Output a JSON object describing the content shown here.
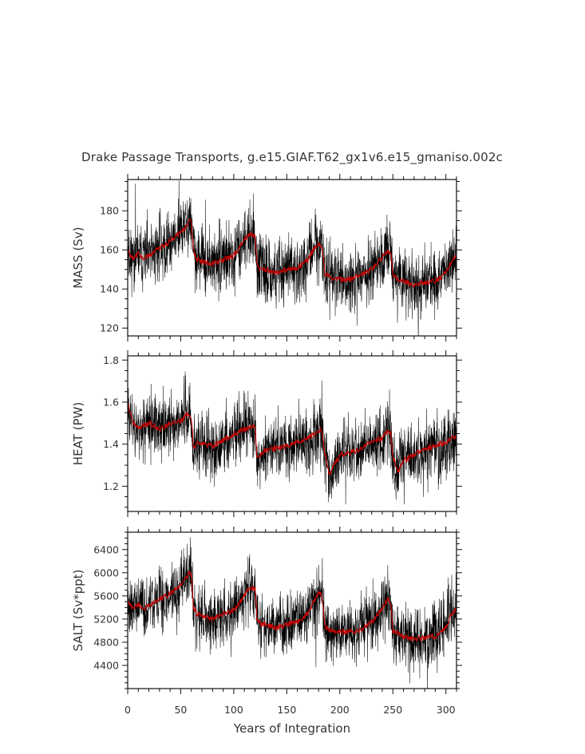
{
  "title": "Drake Passage Transports, g.e15.GIAF.T62_gx1v6.e15_gmaniso.002c",
  "chart_data": [
    {
      "type": "line",
      "ylabel": "MASS (Sv)",
      "xlabel": "",
      "xlim": [
        0,
        310
      ],
      "ylim": [
        116,
        196
      ],
      "xticks": [
        0,
        50,
        100,
        150,
        200,
        250,
        300
      ],
      "yticks": [
        120,
        140,
        160,
        180
      ],
      "ytick_labels": [
        "120",
        "140",
        "160",
        "180"
      ],
      "noise": 8,
      "seed": 11,
      "series": [
        {
          "color": "#cc0000",
          "x": [
            0,
            3,
            6,
            10,
            15,
            20,
            25,
            30,
            35,
            40,
            45,
            50,
            55,
            58,
            60,
            62,
            65,
            70,
            80,
            90,
            100,
            105,
            110,
            115,
            120,
            122,
            125,
            130,
            140,
            150,
            160,
            170,
            175,
            180,
            183,
            186,
            190,
            200,
            210,
            220,
            230,
            240,
            245,
            248,
            250,
            255,
            260,
            270,
            280,
            290,
            300,
            305,
            310
          ],
          "y": [
            160,
            157,
            156,
            158,
            156,
            157,
            159,
            161,
            162,
            165,
            167,
            169,
            172,
            175,
            174,
            160,
            155,
            154,
            153,
            155,
            157,
            161,
            165,
            168,
            167,
            153,
            150,
            150,
            148,
            150,
            151,
            155,
            160,
            163,
            162,
            148,
            146,
            145,
            145,
            147,
            150,
            156,
            160,
            158,
            147,
            145,
            144,
            142,
            143,
            144,
            148,
            154,
            157
          ]
        }
      ]
    },
    {
      "type": "line",
      "ylabel": "HEAT (PW)",
      "xlabel": "",
      "xlim": [
        0,
        310
      ],
      "ylim": [
        1.08,
        1.82
      ],
      "xticks": [
        0,
        50,
        100,
        150,
        200,
        250,
        300
      ],
      "yticks": [
        1.2,
        1.4,
        1.6,
        1.8
      ],
      "ytick_labels": [
        "1.2",
        "1.4",
        "1.6",
        "1.8"
      ],
      "noise": 0.075,
      "seed": 23,
      "series": [
        {
          "color": "#cc0000",
          "x": [
            0,
            2,
            5,
            10,
            20,
            30,
            40,
            50,
            55,
            60,
            62,
            65,
            70,
            80,
            90,
            100,
            110,
            120,
            122,
            125,
            130,
            140,
            150,
            160,
            170,
            180,
            183,
            186,
            190,
            200,
            210,
            220,
            230,
            240,
            245,
            248,
            250,
            255,
            260,
            270,
            280,
            290,
            300,
            305,
            310
          ],
          "y": [
            1.6,
            1.56,
            1.5,
            1.48,
            1.5,
            1.47,
            1.5,
            1.51,
            1.54,
            1.53,
            1.38,
            1.4,
            1.4,
            1.39,
            1.42,
            1.45,
            1.47,
            1.49,
            1.33,
            1.35,
            1.37,
            1.38,
            1.39,
            1.41,
            1.43,
            1.46,
            1.47,
            1.35,
            1.25,
            1.35,
            1.36,
            1.38,
            1.41,
            1.43,
            1.46,
            1.45,
            1.34,
            1.27,
            1.32,
            1.35,
            1.38,
            1.39,
            1.41,
            1.43,
            1.44
          ]
        }
      ]
    },
    {
      "type": "line",
      "ylabel": "SALT (Sv*ppt)",
      "xlabel": "Years of Integration",
      "xlim": [
        0,
        310
      ],
      "ylim": [
        4000,
        6700
      ],
      "xticks": [
        0,
        50,
        100,
        150,
        200,
        250,
        300
      ],
      "xtick_labels": [
        "0",
        "50",
        "100",
        "150",
        "200",
        "250",
        "300"
      ],
      "yticks": [
        4400,
        4800,
        5200,
        5600,
        6000,
        6400
      ],
      "ytick_labels": [
        "4400",
        "4800",
        "5200",
        "5600",
        "6000",
        "6400"
      ],
      "noise": 260,
      "seed": 37,
      "series": [
        {
          "color": "#cc0000",
          "x": [
            0,
            3,
            6,
            10,
            15,
            20,
            25,
            30,
            35,
            40,
            45,
            50,
            55,
            58,
            60,
            62,
            65,
            70,
            80,
            90,
            100,
            105,
            110,
            115,
            120,
            122,
            125,
            130,
            140,
            150,
            160,
            170,
            175,
            180,
            183,
            186,
            190,
            200,
            210,
            220,
            230,
            240,
            245,
            248,
            250,
            255,
            260,
            270,
            280,
            290,
            300,
            305,
            310
          ],
          "y": [
            5500,
            5420,
            5400,
            5450,
            5380,
            5420,
            5480,
            5550,
            5580,
            5650,
            5700,
            5800,
            5900,
            6000,
            5980,
            5400,
            5300,
            5250,
            5200,
            5280,
            5350,
            5480,
            5600,
            5750,
            5720,
            5200,
            5120,
            5100,
            5050,
            5100,
            5150,
            5300,
            5500,
            5650,
            5600,
            5080,
            5000,
            4980,
            4980,
            5020,
            5150,
            5380,
            5550,
            5480,
            5000,
            4950,
            4900,
            4850,
            4880,
            4900,
            5050,
            5280,
            5380
          ]
        }
      ]
    }
  ]
}
